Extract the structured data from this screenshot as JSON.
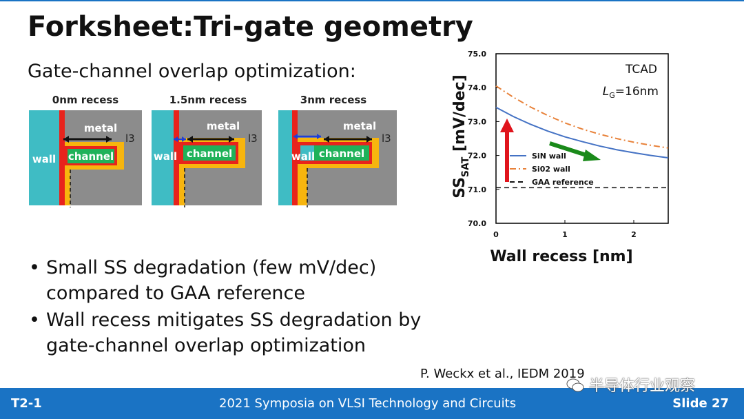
{
  "slide": {
    "title": "Forksheet:Tri-gate geometry",
    "subtitle": "Gate-channel overlap optimization:",
    "citation": "P. Weckx et al., IEDM 2019"
  },
  "diagrams": [
    {
      "label": "0nm recess",
      "metal": "metal",
      "wall": "wall",
      "channel": "channel",
      "marker": "l3"
    },
    {
      "label": "1.5nm recess",
      "metal": "metal",
      "wall": "wall",
      "channel": "channel",
      "marker": "l3"
    },
    {
      "label": "3nm recess",
      "metal": "metal",
      "wall": "wall",
      "channel": "channel",
      "marker": "l3"
    }
  ],
  "bullets": [
    "Small SS degradation (few mV/dec) compared to GAA reference",
    "Wall recess mitigates SS degradation by gate-channel overlap optimization"
  ],
  "footer": {
    "left": "T2-1",
    "center": "2021 Symposia on VLSI Technology and Circuits",
    "right": "Slide 27"
  },
  "watermark": "半导体行业观察",
  "colors": {
    "accent": "#1a73c4",
    "wall": "#3fbcc4",
    "metal": "#8c8c8c",
    "channel": "#1fb25a",
    "liner_red": "#e8231c",
    "liner_yellow": "#f7b50e"
  },
  "chart_data": {
    "type": "line",
    "annotation_top": "TCAD",
    "annotation_lg": "L",
    "annotation_lg_sub": "G",
    "annotation_lg_val": "=16nm",
    "ylabel": "SS",
    "ylabel_sub": "SAT",
    "ylabel_unit": " [mV/dec]",
    "xlabel": "Wall recess [nm]",
    "xlim": [
      0,
      2.5
    ],
    "ylim": [
      70.0,
      75.0
    ],
    "xticks": [
      "0",
      "1",
      "2"
    ],
    "yticks": [
      "70.0",
      "71.0",
      "72.0",
      "73.0",
      "74.0",
      "75.0"
    ],
    "series": [
      {
        "name": "SiN wall",
        "color": "#4472c4",
        "style": "solid",
        "x": [
          0,
          0.25,
          0.5,
          0.75,
          1.0,
          1.25,
          1.5,
          1.75,
          2.0,
          2.25,
          2.5
        ],
        "y": [
          73.42,
          73.15,
          72.92,
          72.72,
          72.55,
          72.41,
          72.28,
          72.17,
          72.08,
          72.0,
          71.93
        ]
      },
      {
        "name": "Si02 wall",
        "color": "#e8823a",
        "style": "dashdot",
        "x": [
          0,
          0.25,
          0.5,
          0.75,
          1.0,
          1.25,
          1.5,
          1.75,
          2.0,
          2.25,
          2.5
        ],
        "y": [
          74.05,
          73.72,
          73.43,
          73.18,
          72.96,
          72.78,
          72.63,
          72.5,
          72.39,
          72.3,
          72.22
        ]
      },
      {
        "name": "GAA reference",
        "color": "#111111",
        "style": "dashed",
        "x": [
          0,
          2.5
        ],
        "y": [
          71.05,
          71.05
        ]
      }
    ],
    "legend": "bottom-left",
    "grid": false
  }
}
